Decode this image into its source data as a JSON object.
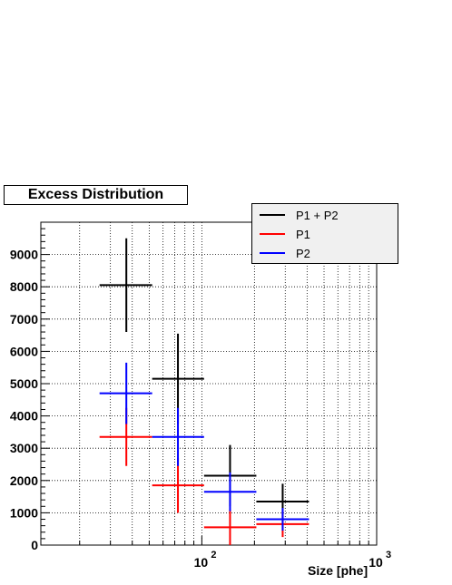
{
  "chart_data": {
    "type": "scatter",
    "title": "Excess Distribution",
    "xlabel": "Size [phe]",
    "ylabel": "",
    "x_scale": "log",
    "xlim": [
      12,
      1000
    ],
    "ylim": [
      0,
      10000
    ],
    "x_tick_labels": [
      "10",
      "10"
    ],
    "x_tick_exponents": [
      "2",
      "3"
    ],
    "y_ticks": [
      0,
      1000,
      2000,
      3000,
      4000,
      5000,
      6000,
      7000,
      8000,
      9000
    ],
    "grid": true,
    "legend_position": "top-right",
    "series": [
      {
        "name": "P1 + P2",
        "color": "#000000",
        "points": [
          {
            "x_low": 26,
            "x_high": 52,
            "x": 37,
            "y": 8050,
            "y_err": 1450
          },
          {
            "x_low": 52,
            "x_high": 103,
            "x": 73,
            "y": 5150,
            "y_err": 1400
          },
          {
            "x_low": 103,
            "x_high": 205,
            "x": 145,
            "y": 2150,
            "y_err": 950
          },
          {
            "x_low": 205,
            "x_high": 410,
            "x": 290,
            "y": 1350,
            "y_err": 550
          }
        ]
      },
      {
        "name": "P1",
        "color": "#ff0000",
        "points": [
          {
            "x_low": 26,
            "x_high": 52,
            "x": 37,
            "y": 3350,
            "y_err": 900
          },
          {
            "x_low": 52,
            "x_high": 103,
            "x": 73,
            "y": 1850,
            "y_err": 850
          },
          {
            "x_low": 103,
            "x_high": 205,
            "x": 145,
            "y": 550,
            "y_err": 550
          },
          {
            "x_low": 205,
            "x_high": 410,
            "x": 290,
            "y": 650,
            "y_err": 400
          }
        ]
      },
      {
        "name": "P2",
        "color": "#0000ff",
        "points": [
          {
            "x_low": 26,
            "x_high": 52,
            "x": 37,
            "y": 4700,
            "y_err": 950
          },
          {
            "x_low": 52,
            "x_high": 103,
            "x": 73,
            "y": 3350,
            "y_err": 900
          },
          {
            "x_low": 103,
            "x_high": 205,
            "x": 145,
            "y": 1650,
            "y_err": 600
          },
          {
            "x_low": 205,
            "x_high": 410,
            "x": 290,
            "y": 800,
            "y_err": 350
          }
        ]
      }
    ]
  }
}
